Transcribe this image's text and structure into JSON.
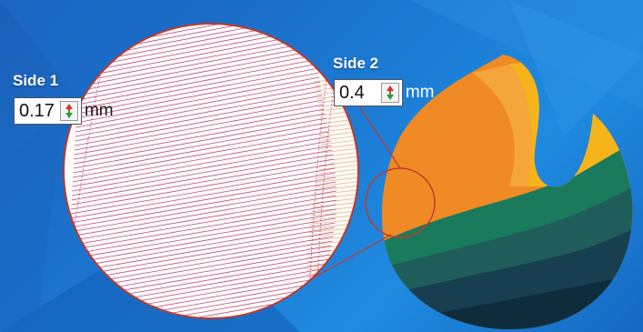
{
  "side1": {
    "label": "Side 1",
    "value": "0.17",
    "unit": "mm"
  },
  "side2": {
    "label": "Side 2",
    "value": "0.4",
    "unit": "mm"
  },
  "icons": {
    "spinner": "up-down-spinner-icon"
  },
  "colors": {
    "background": "#1b76d0",
    "stitch_purple": "#b0307a",
    "stitch_orange": "#e0a060",
    "magnifier_border": "#c0392b",
    "flame_orange": "#f08a24",
    "flame_yellow": "#f4b41a",
    "wave_green": "#1a7a5c",
    "wave_dark": "#0f2c3c"
  }
}
